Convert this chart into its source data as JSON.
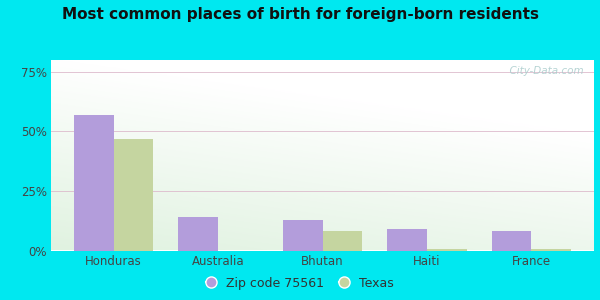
{
  "title": "Most common places of birth for foreign-born residents",
  "categories": [
    "Honduras",
    "Australia",
    "Bhutan",
    "Haiti",
    "France"
  ],
  "zip_values": [
    57,
    14,
    13,
    9,
    8
  ],
  "texas_values": [
    47,
    0,
    8,
    0.8,
    0.5
  ],
  "zip_color": "#b39ddb",
  "texas_color": "#c5d5a0",
  "background_outer": "#00e8f0",
  "yticks": [
    0,
    25,
    50,
    75
  ],
  "ytick_labels": [
    "0%",
    "25%",
    "50%",
    "75%"
  ],
  "ylim": [
    0,
    80
  ],
  "bar_width": 0.38,
  "legend_zip_label": "Zip code 75561",
  "legend_texas_label": "Texas",
  "watermark": "  City-Data.com",
  "title_fontsize": 11,
  "tick_fontsize": 8.5,
  "legend_fontsize": 9
}
